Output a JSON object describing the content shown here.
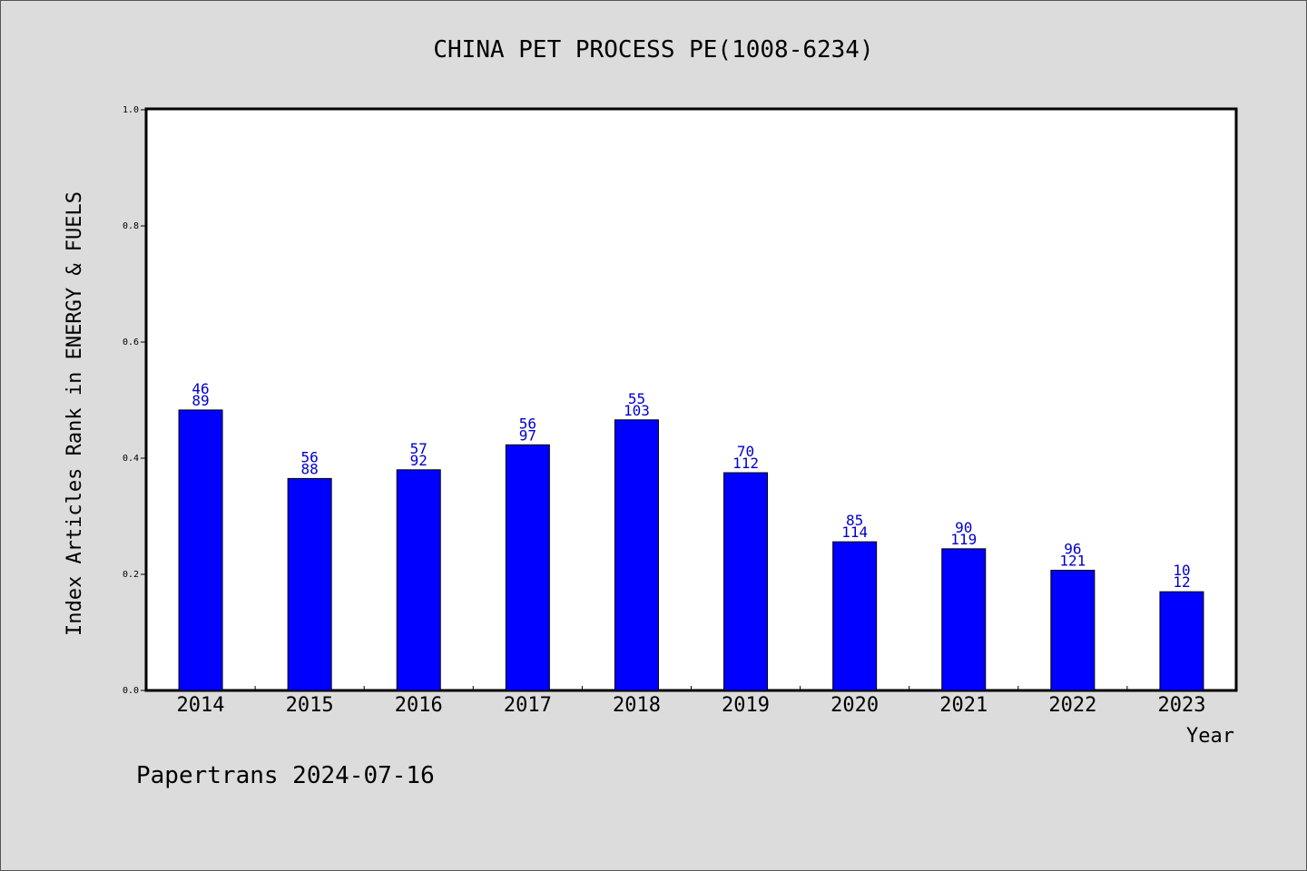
{
  "chart_data": {
    "type": "bar",
    "title": "CHINA PET PROCESS PE(1008-6234)",
    "xlabel": "Year",
    "ylabel": "Index Articles Rank in ENERGY & FUELS",
    "ylim": [
      0,
      1.0
    ],
    "yticks": [
      "0.0",
      "0.2",
      "0.4",
      "0.6",
      "0.8",
      "1.0"
    ],
    "categories": [
      "2014",
      "2015",
      "2016",
      "2017",
      "2018",
      "2019",
      "2020",
      "2021",
      "2022",
      "2023"
    ],
    "values": [
      0.483,
      0.365,
      0.38,
      0.423,
      0.466,
      0.375,
      0.256,
      0.244,
      0.207,
      0.17
    ],
    "label_top": [
      "46",
      "56",
      "57",
      "56",
      "55",
      "70",
      "85",
      "90",
      "96",
      "10"
    ],
    "label_bottom": [
      "89",
      "88",
      "92",
      "97",
      "103",
      "112",
      "114",
      "119",
      "121",
      "12"
    ],
    "grid": false,
    "bar_color": "#0000ff",
    "label_color": "#0000cc"
  },
  "footer": "Papertrans 2024-07-16"
}
